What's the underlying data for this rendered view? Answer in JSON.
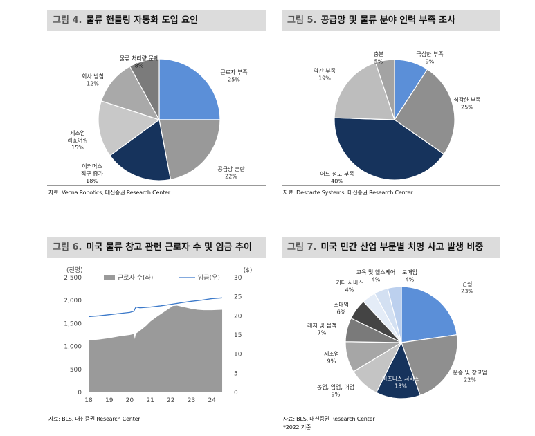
{
  "colors": {
    "blue": "#5b8fd8",
    "gray_dark": "#8c8c8c",
    "gray_mid": "#a6a6a6",
    "gray_light": "#c4c4c4",
    "navy": "#16335c",
    "gray_darker": "#777777",
    "charcoal": "#4a4a4a",
    "pale_blue": "#c9daf0",
    "wage_line": "#3a78c9",
    "area": "#9a9a9a"
  },
  "panels": {
    "p1": {
      "fig": "그림 4.",
      "title": "물류 핸들링 자동화 도입 요인",
      "source": "자료: Vecna Robotics, 대신증권 Research Center"
    },
    "p2": {
      "fig": "그림 5.",
      "title": "공급망 및 물류 분야 인력 부족 조사",
      "source": "자료: Descarte Systems, 대신증권 Research Center"
    },
    "p3": {
      "fig": "그림 6.",
      "title": "미국 물류 창고 관련 근로자 수 및 임금 추이",
      "source": "자료: BLS, 대신증권 Research Center"
    },
    "p4": {
      "fig": "그림 7.",
      "title": "미국 민간 산업 부문별 치명 사고 발생 비중",
      "source": "자료: BLS, 대신증권 Research Center",
      "note": "*2022 기준"
    }
  },
  "chart_data": [
    {
      "id": "fig4",
      "type": "pie",
      "title": "물류 핸들링 자동화 도입 요인",
      "slices": [
        {
          "label": "근로자 부족",
          "value": 25,
          "pct": "25%",
          "color": "#5b8fd8"
        },
        {
          "label": "공급망 혼란",
          "value": 22,
          "pct": "22%",
          "color": "#999999"
        },
        {
          "label": "이커머스 직구 증가",
          "value": 18,
          "pct": "18%",
          "color": "#16335c"
        },
        {
          "label": "제조업 리쇼어링",
          "value": 15,
          "pct": "15%",
          "color": "#c8c8c8"
        },
        {
          "label": "회사 방침",
          "value": 12,
          "pct": "12%",
          "color": "#a9a9a9"
        },
        {
          "label": "물류 처리량 문제",
          "value": 8,
          "pct": "8%",
          "color": "#7b7b7b"
        }
      ]
    },
    {
      "id": "fig5",
      "type": "pie",
      "title": "공급망 및 물류 분야 인력 부족 조사",
      "slices": [
        {
          "label": "극심한 부족",
          "value": 9,
          "pct": "9%",
          "color": "#5b8fd8"
        },
        {
          "label": "심각한 부족",
          "value": 25,
          "pct": "25%",
          "color": "#8f8f8f"
        },
        {
          "label": "어느 정도 부족",
          "value": 40,
          "pct": "40%",
          "color": "#16335c"
        },
        {
          "label": "약간 부족",
          "value": 19,
          "pct": "19%",
          "color": "#bdbdbd"
        },
        {
          "label": "충분",
          "value": 5,
          "pct": "5%",
          "color": "#a3a3a3"
        }
      ]
    },
    {
      "id": "fig6",
      "type": "area",
      "title": "미국 물류 창고 관련 근로자 수 및 임금 추이",
      "series": [
        {
          "name": "근로자 수(좌)",
          "type": "area",
          "axis": "left",
          "x": [
            18.0,
            18.5,
            19.0,
            19.5,
            20.0,
            20.2,
            20.25,
            20.3,
            20.5,
            20.8,
            21.0,
            21.3,
            21.6,
            21.9,
            22.1,
            22.3,
            22.6,
            23.0,
            23.3,
            23.6,
            24.0,
            24.5
          ],
          "values": [
            1130,
            1150,
            1180,
            1220,
            1250,
            1270,
            1160,
            1280,
            1340,
            1450,
            1540,
            1640,
            1730,
            1820,
            1880,
            1890,
            1860,
            1820,
            1800,
            1790,
            1790,
            1800
          ]
        },
        {
          "name": "임금(우)",
          "type": "line",
          "axis": "right",
          "x": [
            18.0,
            18.5,
            19.0,
            19.5,
            20.0,
            20.2,
            20.3,
            20.5,
            21.0,
            21.5,
            22.0,
            22.5,
            23.0,
            23.5,
            24.0,
            24.5
          ],
          "values": [
            19.8,
            20.0,
            20.3,
            20.6,
            20.9,
            21.2,
            22.3,
            22.1,
            22.3,
            22.6,
            23.0,
            23.4,
            23.8,
            24.1,
            24.5,
            24.7
          ]
        }
      ],
      "x_ticks": [
        "18",
        "19",
        "20",
        "21",
        "22",
        "23",
        "24"
      ],
      "x_range": [
        18,
        24.6
      ],
      "y_left_label": "(천명)",
      "y_left_range": [
        0,
        2500
      ],
      "y_left_ticks": [
        "0",
        "500",
        "1,000",
        "1,500",
        "2,000",
        "2,500"
      ],
      "y_right_label": "($)",
      "y_right_range": [
        0,
        30
      ],
      "y_right_ticks": [
        "0",
        "5",
        "10",
        "15",
        "20",
        "25",
        "30"
      ],
      "legend": [
        "근로자 수(좌)",
        "임금(우)"
      ]
    },
    {
      "id": "fig7",
      "type": "pie",
      "title": "미국 민간 산업 부문별 치명 사고 발생 비중",
      "slices": [
        {
          "label": "건설",
          "value": 23,
          "pct": "23%",
          "color": "#5b8fd8"
        },
        {
          "label": "운송 및 창고업",
          "value": 22,
          "pct": "22%",
          "color": "#8f8f8f"
        },
        {
          "label": "비즈니스 서비스",
          "value": 13,
          "pct": "13%",
          "color": "#16335c"
        },
        {
          "label": "농업, 임업, 어업",
          "value": 9,
          "pct": "9%",
          "color": "#c4c4c4"
        },
        {
          "label": "제조업",
          "value": 9,
          "pct": "9%",
          "color": "#a6a6a6"
        },
        {
          "label": "레저 및 접객",
          "value": 7,
          "pct": "7%",
          "color": "#7a7a7a"
        },
        {
          "label": "소매업",
          "value": 6,
          "pct": "6%",
          "color": "#444444"
        },
        {
          "label": "기타 서비스",
          "value": 4,
          "pct": "4%",
          "color": "#e4ecf7"
        },
        {
          "label": "교육 및 헬스케어",
          "value": 4,
          "pct": "4%",
          "color": "#d3e0f2"
        },
        {
          "label": "도매업",
          "value": 4,
          "pct": "4%",
          "color": "#bcd0ee"
        }
      ]
    }
  ]
}
